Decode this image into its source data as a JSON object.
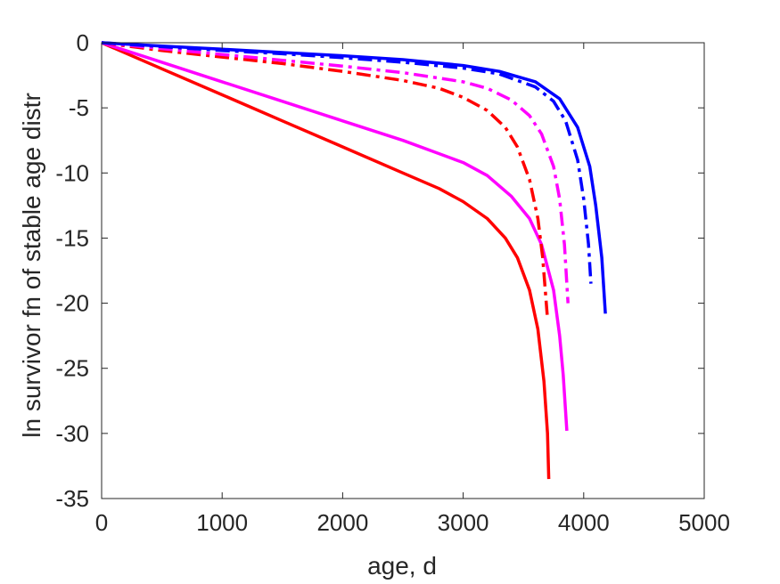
{
  "chart_data": {
    "type": "line",
    "title": "",
    "xlabel": "age, d",
    "ylabel": "ln survivor fn of stable age distr",
    "xlim": [
      0,
      5000
    ],
    "ylim": [
      -35,
      0
    ],
    "xticks": [
      0,
      1000,
      2000,
      3000,
      4000,
      5000
    ],
    "yticks": [
      0,
      -5,
      -10,
      -15,
      -20,
      -25,
      -30,
      -35
    ],
    "xtick_labels": [
      "0",
      "1000",
      "2000",
      "3000",
      "4000",
      "5000"
    ],
    "ytick_labels": [
      "0",
      "-5",
      "-10",
      "-15",
      "-20",
      "-25",
      "-30",
      "-35"
    ],
    "grid": false,
    "legend": "none",
    "series": [
      {
        "color": "#ff0000",
        "style": "solid",
        "x": [
          0,
          500,
          1000,
          1500,
          2000,
          2500,
          2800,
          3000,
          3200,
          3350,
          3450,
          3550,
          3620,
          3670,
          3700,
          3710
        ],
        "y": [
          0,
          -2,
          -4,
          -6,
          -8,
          -10,
          -11.2,
          -12.2,
          -13.5,
          -15,
          -16.5,
          -19,
          -22,
          -26,
          -30,
          -33.5
        ]
      },
      {
        "color": "#ff00ff",
        "style": "solid",
        "x": [
          0,
          500,
          1000,
          1500,
          2000,
          2500,
          3000,
          3200,
          3400,
          3550,
          3650,
          3750,
          3800,
          3830,
          3860
        ],
        "y": [
          0,
          -1.5,
          -3.0,
          -4.5,
          -6.0,
          -7.5,
          -9.2,
          -10.2,
          -11.8,
          -13.5,
          -15.5,
          -19,
          -22.5,
          -25.5,
          -29.8
        ]
      },
      {
        "color": "#ff0000",
        "style": "dashdot",
        "x": [
          0,
          500,
          1000,
          1500,
          2000,
          2500,
          2800,
          3000,
          3200,
          3350,
          3450,
          3550,
          3620,
          3660,
          3700
        ],
        "y": [
          0,
          -0.6,
          -1.1,
          -1.6,
          -2.2,
          -2.9,
          -3.5,
          -4.2,
          -5.2,
          -6.5,
          -8.0,
          -10.5,
          -13.5,
          -16.5,
          -21.2
        ]
      },
      {
        "color": "#ff00ff",
        "style": "dashdot",
        "x": [
          0,
          500,
          1000,
          1500,
          2000,
          2500,
          3000,
          3200,
          3400,
          3550,
          3650,
          3750,
          3800,
          3840,
          3870
        ],
        "y": [
          0,
          -0.45,
          -0.9,
          -1.35,
          -1.8,
          -2.3,
          -3.0,
          -3.5,
          -4.4,
          -5.6,
          -7.0,
          -9.5,
          -12.0,
          -15.5,
          -20.0
        ]
      },
      {
        "color": "#0000ff",
        "style": "dashdot",
        "x": [
          0,
          500,
          1000,
          1500,
          2000,
          2500,
          3000,
          3300,
          3600,
          3750,
          3850,
          3950,
          4000,
          4040,
          4060
        ],
        "y": [
          0,
          -0.3,
          -0.6,
          -0.85,
          -1.15,
          -1.5,
          -1.95,
          -2.4,
          -3.4,
          -4.5,
          -6.0,
          -9.0,
          -12.0,
          -15.5,
          -18.5
        ]
      },
      {
        "color": "#0000ff",
        "style": "solid",
        "x": [
          0,
          500,
          1000,
          1500,
          2000,
          2500,
          3000,
          3300,
          3600,
          3800,
          3950,
          4050,
          4100,
          4150,
          4180
        ],
        "y": [
          0,
          -0.25,
          -0.5,
          -0.75,
          -1.0,
          -1.3,
          -1.75,
          -2.2,
          -3.0,
          -4.3,
          -6.5,
          -9.5,
          -12.5,
          -16.5,
          -20.8
        ]
      }
    ]
  }
}
